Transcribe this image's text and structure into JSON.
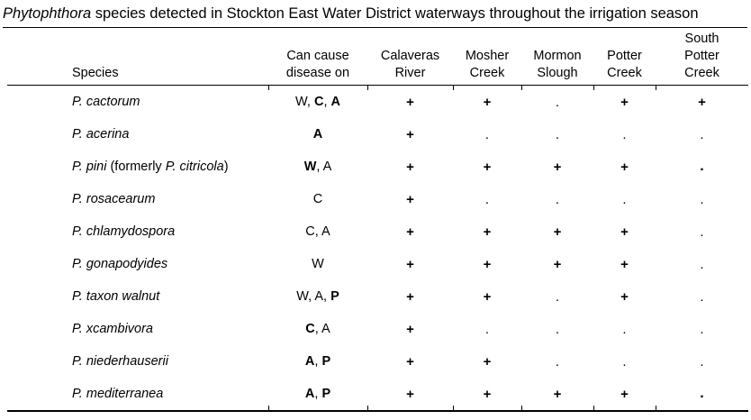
{
  "title": {
    "italic": "Phytophthora",
    "rest": " species detected in Stockton East Water District waterways throughout the irrigation season"
  },
  "colors": {
    "text": "#000000",
    "background": "#ffffff",
    "rules": "#000000"
  },
  "table": {
    "columns": [
      {
        "id": "species",
        "label": "Species"
      },
      {
        "id": "can-cause-disease-on",
        "line1": "Can cause",
        "line2": "disease on"
      },
      {
        "id": "calaveras-river",
        "line1": "Calaveras",
        "line2": "River"
      },
      {
        "id": "mosher-creek",
        "line1": "Mosher",
        "line2": "Creek"
      },
      {
        "id": "mormon-slough",
        "line1": "Mormon",
        "line2": "Slough"
      },
      {
        "id": "potter-creek",
        "line1": "Potter",
        "line2": "Creek"
      },
      {
        "id": "south-potter-creek",
        "line0": "South",
        "line1": "Potter",
        "line2": "Creek"
      }
    ],
    "marks": {
      "present": "+",
      "absent": "."
    },
    "rows": [
      {
        "species": [
          {
            "text": "P. cactorum",
            "italic": true
          }
        ],
        "hosts": [
          {
            "text": "W",
            "bold": false
          },
          {
            "text": "C",
            "bold": true
          },
          {
            "text": "A",
            "bold": true
          }
        ],
        "detections": [
          {
            "mark": "+",
            "bold": true
          },
          {
            "mark": "+",
            "bold": true
          },
          {
            "mark": ".",
            "bold": false
          },
          {
            "mark": "+",
            "bold": true
          },
          {
            "mark": "+",
            "bold": true
          }
        ]
      },
      {
        "species": [
          {
            "text": "P. acerina",
            "italic": true
          }
        ],
        "hosts": [
          {
            "text": "A",
            "bold": true
          }
        ],
        "detections": [
          {
            "mark": "+",
            "bold": true
          },
          {
            "mark": ".",
            "bold": false
          },
          {
            "mark": ".",
            "bold": false
          },
          {
            "mark": ".",
            "bold": false
          },
          {
            "mark": ".",
            "bold": false
          }
        ]
      },
      {
        "species": [
          {
            "text": "P. pini",
            "italic": true
          },
          {
            "text": " (formerly ",
            "italic": false
          },
          {
            "text": "P. citricola",
            "italic": true
          },
          {
            "text": ")",
            "italic": false
          }
        ],
        "hosts": [
          {
            "text": "W",
            "bold": true
          },
          {
            "text": "A",
            "bold": false
          }
        ],
        "detections": [
          {
            "mark": "+",
            "bold": true
          },
          {
            "mark": "+",
            "bold": true
          },
          {
            "mark": "+",
            "bold": true
          },
          {
            "mark": "+",
            "bold": true
          },
          {
            "mark": ".",
            "bold": true
          }
        ]
      },
      {
        "species": [
          {
            "text": "P. rosacearum",
            "italic": true
          }
        ],
        "hosts": [
          {
            "text": "C",
            "bold": false
          }
        ],
        "detections": [
          {
            "mark": "+",
            "bold": true
          },
          {
            "mark": ".",
            "bold": false
          },
          {
            "mark": ".",
            "bold": false
          },
          {
            "mark": ".",
            "bold": false
          },
          {
            "mark": ".",
            "bold": false
          }
        ]
      },
      {
        "species": [
          {
            "text": "P. chlamydospora",
            "italic": true
          }
        ],
        "hosts": [
          {
            "text": "C",
            "bold": false
          },
          {
            "text": "A",
            "bold": false
          }
        ],
        "detections": [
          {
            "mark": "+",
            "bold": true
          },
          {
            "mark": "+",
            "bold": true
          },
          {
            "mark": "+",
            "bold": true
          },
          {
            "mark": "+",
            "bold": true
          },
          {
            "mark": ".",
            "bold": false
          }
        ]
      },
      {
        "species": [
          {
            "text": "P. gonapodyides",
            "italic": true
          }
        ],
        "hosts": [
          {
            "text": "W",
            "bold": false
          }
        ],
        "detections": [
          {
            "mark": "+",
            "bold": true
          },
          {
            "mark": "+",
            "bold": true
          },
          {
            "mark": "+",
            "bold": true
          },
          {
            "mark": "+",
            "bold": true
          },
          {
            "mark": ".",
            "bold": false
          }
        ]
      },
      {
        "species": [
          {
            "text": "P. taxon walnut",
            "italic": true
          }
        ],
        "hosts": [
          {
            "text": "W",
            "bold": false
          },
          {
            "text": "A",
            "bold": false
          },
          {
            "text": "P",
            "bold": true
          }
        ],
        "detections": [
          {
            "mark": "+",
            "bold": true
          },
          {
            "mark": "+",
            "bold": true
          },
          {
            "mark": ".",
            "bold": false
          },
          {
            "mark": "+",
            "bold": true
          },
          {
            "mark": ".",
            "bold": false
          }
        ]
      },
      {
        "species": [
          {
            "text": "P. xcambivora",
            "italic": true
          }
        ],
        "hosts": [
          {
            "text": "C",
            "bold": true
          },
          {
            "text": "A",
            "bold": false
          }
        ],
        "detections": [
          {
            "mark": "+",
            "bold": true
          },
          {
            "mark": ".",
            "bold": false
          },
          {
            "mark": ".",
            "bold": false
          },
          {
            "mark": ".",
            "bold": false
          },
          {
            "mark": ".",
            "bold": false
          }
        ]
      },
      {
        "species": [
          {
            "text": "P. niederhauserii",
            "italic": true
          }
        ],
        "hosts": [
          {
            "text": "A",
            "bold": true
          },
          {
            "text": "P",
            "bold": true
          }
        ],
        "detections": [
          {
            "mark": "+",
            "bold": true
          },
          {
            "mark": "+",
            "bold": true
          },
          {
            "mark": ".",
            "bold": false
          },
          {
            "mark": ".",
            "bold": false
          },
          {
            "mark": ".",
            "bold": false
          }
        ]
      },
      {
        "species": [
          {
            "text": "P. mediterranea",
            "italic": true
          }
        ],
        "hosts": [
          {
            "text": "A",
            "bold": true
          },
          {
            "text": "P",
            "bold": true
          }
        ],
        "detections": [
          {
            "mark": "+",
            "bold": true
          },
          {
            "mark": "+",
            "bold": true
          },
          {
            "mark": "+",
            "bold": true
          },
          {
            "mark": "+",
            "bold": true
          },
          {
            "mark": ".",
            "bold": true
          }
        ]
      }
    ]
  }
}
